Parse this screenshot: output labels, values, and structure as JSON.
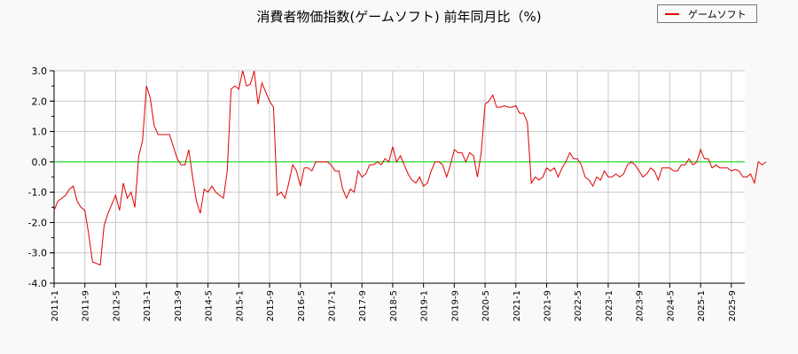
{
  "title": "消費者物価指数(ゲームソフト) 前年同月比（%)",
  "legend": {
    "items": [
      {
        "label": "ゲームソフト",
        "color": "#e00000"
      }
    ]
  },
  "colors": {
    "series": "#e00000",
    "zero_line": "#00dd00",
    "grid": "#c8c8c8",
    "axis": "#000000",
    "background": "#f9f9f9"
  },
  "chart_data": {
    "type": "line",
    "title": "消費者物価指数(ゲームソフト) 前年同月比（%)",
    "xlabel": "",
    "ylabel": "",
    "ylim": [
      -4.0,
      3.0
    ],
    "yticks": [
      "3.0",
      "2.0",
      "1.0",
      "0.0",
      "-1.0",
      "-2.0",
      "-3.0",
      "-4.0"
    ],
    "xticks": [
      "2011-1",
      "2011-9",
      "2012-5",
      "2013-1",
      "2013-9",
      "2014-5",
      "2015-1",
      "2015-9",
      "2016-5",
      "2017-1",
      "2017-9",
      "2018-5",
      "2019-1",
      "2019-9",
      "2020-5",
      "2021-1",
      "2021-9",
      "2022-5",
      "2023-1",
      "2023-9",
      "2024-5",
      "2025-1",
      "2025-9"
    ],
    "grid": true,
    "legend_position": "top-right",
    "reference_line": {
      "y": 0.0,
      "color": "#00dd00"
    },
    "x_start": "2011-1",
    "x_end": "2026-1",
    "series": [
      {
        "name": "ゲームソフト",
        "values": [
          -1.6,
          -1.3,
          -1.2,
          -1.1,
          -0.9,
          -0.8,
          -1.3,
          -1.5,
          -1.6,
          -2.4,
          -3.3,
          -3.35,
          -3.4,
          -2.1,
          -1.7,
          -1.4,
          -1.1,
          -1.6,
          -0.7,
          -1.2,
          -1.0,
          -1.5,
          0.2,
          0.7,
          2.5,
          2.1,
          1.2,
          0.9,
          0.9,
          0.9,
          0.9,
          0.5,
          0.1,
          -0.1,
          -0.1,
          0.4,
          -0.5,
          -1.3,
          -1.7,
          -0.9,
          -1.0,
          -0.8,
          -1.0,
          -1.1,
          -1.2,
          -0.3,
          2.4,
          2.5,
          2.4,
          3.0,
          2.5,
          2.55,
          3.0,
          1.9,
          2.6,
          2.3,
          2.0,
          1.8,
          -1.1,
          -1.0,
          -1.2,
          -0.7,
          -0.1,
          -0.3,
          -0.8,
          -0.2,
          -0.2,
          -0.3,
          0.0,
          0.0,
          0.0,
          0.0,
          -0.1,
          -0.3,
          -0.3,
          -0.9,
          -1.2,
          -0.9,
          -1.0,
          -0.3,
          -0.5,
          -0.4,
          -0.1,
          -0.1,
          0.0,
          -0.1,
          0.1,
          0.0,
          0.5,
          0.0,
          0.2,
          -0.1,
          -0.4,
          -0.6,
          -0.7,
          -0.5,
          -0.8,
          -0.7,
          -0.3,
          0.0,
          0.0,
          -0.1,
          -0.5,
          -0.1,
          0.4,
          0.3,
          0.3,
          0.0,
          0.3,
          0.2,
          -0.5,
          0.3,
          1.9,
          2.0,
          2.2,
          1.8,
          1.8,
          1.85,
          1.8,
          1.8,
          1.85,
          1.6,
          1.6,
          1.3,
          -0.7,
          -0.5,
          -0.6,
          -0.5,
          -0.2,
          -0.3,
          -0.2,
          -0.5,
          -0.2,
          0.0,
          0.3,
          0.1,
          0.1,
          -0.1,
          -0.5,
          -0.6,
          -0.8,
          -0.5,
          -0.6,
          -0.3,
          -0.5,
          -0.5,
          -0.4,
          -0.5,
          -0.4,
          -0.1,
          0.0,
          -0.1,
          -0.3,
          -0.5,
          -0.4,
          -0.2,
          -0.3,
          -0.6,
          -0.2,
          -0.2,
          -0.2,
          -0.3,
          -0.3,
          -0.1,
          -0.1,
          0.1,
          -0.1,
          0.0,
          0.4,
          0.1,
          0.1,
          -0.2,
          -0.1,
          -0.2,
          -0.2,
          -0.2,
          -0.3,
          -0.25,
          -0.3,
          -0.5,
          -0.5,
          -0.4,
          -0.7,
          0.0,
          -0.1,
          0.0
        ]
      }
    ]
  }
}
